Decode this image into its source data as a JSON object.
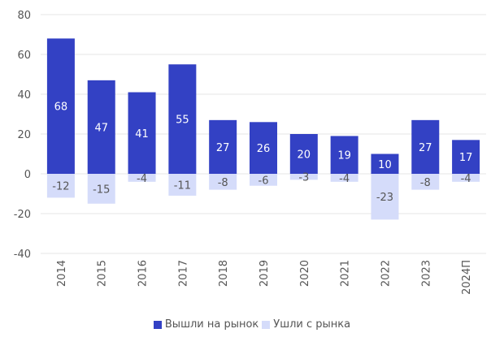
{
  "chart_data": {
    "type": "bar",
    "categories": [
      "2014",
      "2015",
      "2016",
      "2017",
      "2018",
      "2019",
      "2020",
      "2021",
      "2022",
      "2023",
      "2024П"
    ],
    "series": [
      {
        "name": "Вышли на рынок",
        "color": "#3341c4",
        "label_color": "#ffffff",
        "values": [
          68,
          47,
          41,
          55,
          27,
          26,
          20,
          19,
          10,
          27,
          17
        ]
      },
      {
        "name": "Ушли с рынка",
        "color": "#d5dcfa",
        "label_color": "#555555",
        "values": [
          -12,
          -15,
          -4,
          -11,
          -8,
          -6,
          -3,
          -4,
          -23,
          -8,
          -4
        ]
      }
    ],
    "ylim": [
      -40,
      80
    ],
    "yticks": [
      80,
      60,
      40,
      20,
      0,
      -20,
      -40
    ],
    "grid": true,
    "legend_position": "bottom"
  }
}
